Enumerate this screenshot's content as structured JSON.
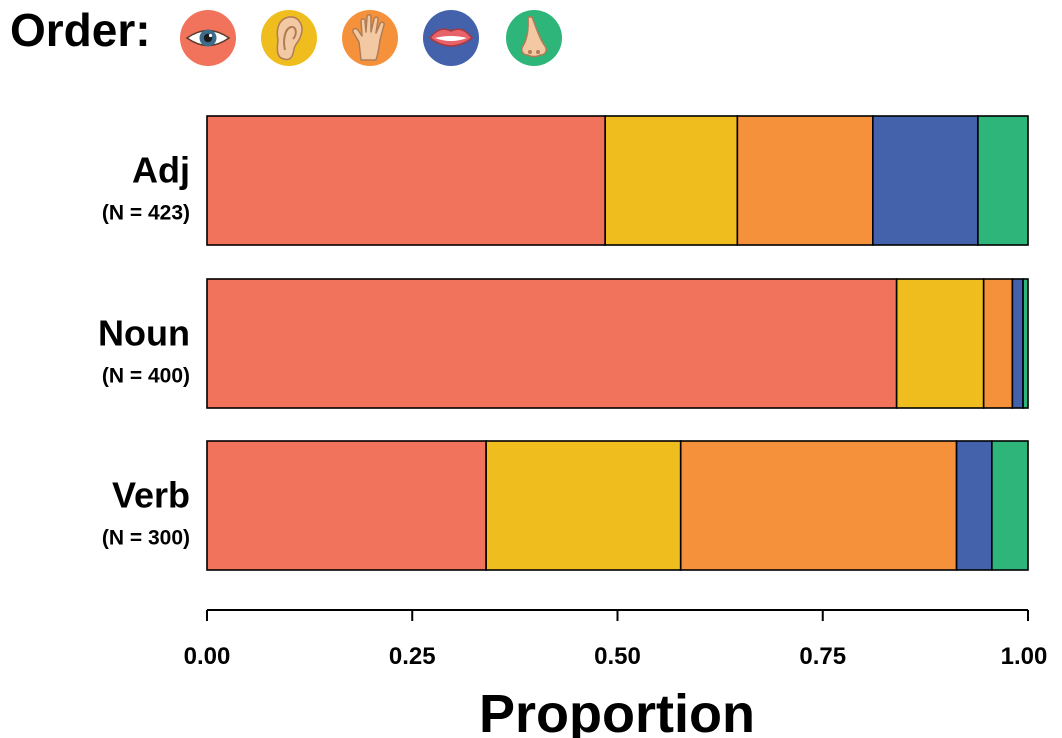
{
  "legend": {
    "title": "Order:",
    "icons": [
      {
        "name": "eye-icon",
        "color": "#F2735B"
      },
      {
        "name": "ear-icon",
        "color": "#EFBE1E"
      },
      {
        "name": "hand-icon",
        "color": "#F6913B"
      },
      {
        "name": "mouth-icon",
        "color": "#4461AB"
      },
      {
        "name": "nose-icon",
        "color": "#2EB57A"
      }
    ]
  },
  "chart_data": {
    "type": "bar",
    "orientation": "horizontal",
    "stacked": true,
    "categories": [
      "Adj",
      "Noun",
      "Verb"
    ],
    "category_counts": [
      "(N = 423)",
      "(N = 400)",
      "(N = 300)"
    ],
    "series": [
      {
        "icon": "eye-icon",
        "color": "#F2735B",
        "values": [
          0.485,
          0.84,
          0.34
        ]
      },
      {
        "icon": "ear-icon",
        "color": "#EFBE1E",
        "values": [
          0.161,
          0.106,
          0.237
        ]
      },
      {
        "icon": "hand-icon",
        "color": "#F6913B",
        "values": [
          0.165,
          0.035,
          0.336
        ]
      },
      {
        "icon": "mouth-icon",
        "color": "#4461AB",
        "values": [
          0.128,
          0.013,
          0.043
        ]
      },
      {
        "icon": "nose-icon",
        "color": "#2EB57A",
        "values": [
          0.061,
          0.006,
          0.044
        ]
      }
    ],
    "xlabel": "Proportion",
    "ylabel": "",
    "xlim": [
      0,
      1
    ],
    "xticks": [
      0,
      0.25,
      0.5,
      0.75,
      1
    ],
    "xtick_labels": [
      "0.00",
      "0.25",
      "0.50",
      "0.75",
      "1.00"
    ],
    "grid": false,
    "legend_position": "top-left"
  }
}
